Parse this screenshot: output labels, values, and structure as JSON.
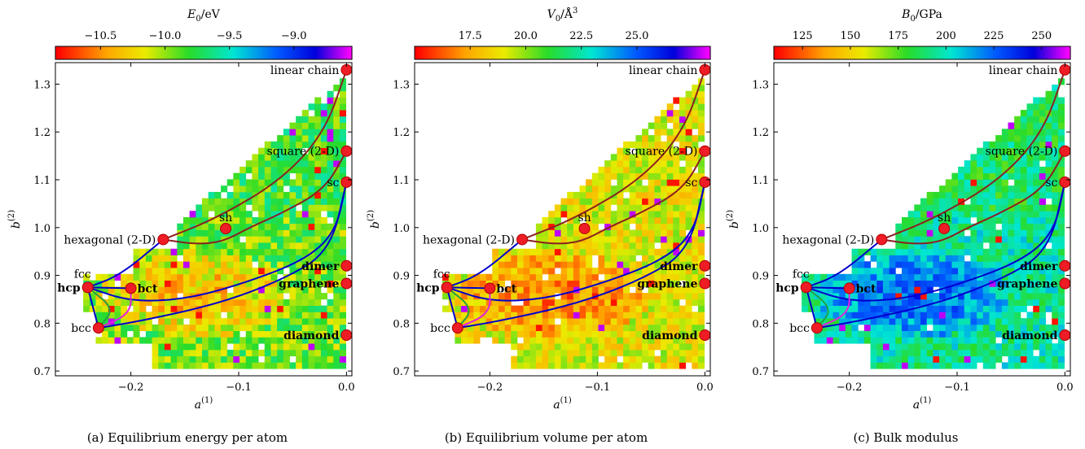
{
  "figure": {
    "y_label": "b^(2)",
    "x_label": "a^(1)"
  },
  "chart_data": [
    {
      "type": "heatmap",
      "caption": "(a) Equilibrium energy per atom",
      "colorbar": {
        "label": "E_0/eV",
        "range": [
          -10.85,
          -8.55
        ],
        "ticks": [
          -10.5,
          -10.0,
          -9.5,
          -9.0
        ],
        "tick_labels": [
          "−10.5",
          "−10.0",
          "−9.5",
          "−9.0"
        ],
        "colormap": "rainbow (red → yellow → green → cyan → blue → magenta)"
      },
      "xlim": [
        -0.27,
        0.005
      ],
      "ylim": [
        0.69,
        1.345
      ],
      "x_ticks": [
        -0.2,
        -0.1,
        0.0
      ],
      "x_tick_labels": [
        "−0.2",
        "−0.1",
        "0.0"
      ],
      "y_ticks": [
        0.7,
        0.8,
        0.9,
        1.0,
        1.1,
        1.2,
        1.3
      ],
      "y_tick_labels": [
        "0.7",
        "0.8",
        "0.9",
        "1.0",
        "1.1",
        "1.2",
        "1.3"
      ],
      "background_level": 0.4,
      "core_level": 0.2,
      "upper_level": 0.45,
      "noise": 0.12
    },
    {
      "type": "heatmap",
      "caption": "(b) Equilibrium volume per atom",
      "colorbar": {
        "label": "V_0/Å^3",
        "range": [
          15.0,
          28.3
        ],
        "ticks": [
          17.5,
          20.0,
          22.5,
          25.0
        ],
        "tick_labels": [
          "17.5",
          "20.0",
          "22.5",
          "25.0"
        ],
        "colormap": "rainbow (red → yellow → green → cyan → blue → magenta)"
      },
      "xlim": [
        -0.27,
        0.005
      ],
      "ylim": [
        0.69,
        1.345
      ],
      "x_ticks": [
        -0.2,
        -0.1,
        0.0
      ],
      "x_tick_labels": [
        "−0.2",
        "−0.1",
        "0.0"
      ],
      "y_ticks": [
        0.7,
        0.8,
        0.9,
        1.0,
        1.1,
        1.2,
        1.3
      ],
      "y_tick_labels": [
        "0.7",
        "0.8",
        "0.9",
        "1.0",
        "1.1",
        "1.2",
        "1.3"
      ],
      "background_level": 0.3,
      "core_level": 0.12,
      "upper_level": 0.3,
      "noise": 0.1
    },
    {
      "type": "heatmap",
      "caption": "(c) Bulk modulus",
      "colorbar": {
        "label": "B_0/GPa",
        "range": [
          110.0,
          265.0
        ],
        "ticks": [
          125,
          150,
          175,
          200,
          225,
          250
        ],
        "tick_labels": [
          "125",
          "150",
          "175",
          "200",
          "225",
          "250"
        ],
        "colormap": "rainbow (red → yellow → green → cyan → blue → magenta)"
      },
      "xlim": [
        -0.27,
        0.005
      ],
      "ylim": [
        0.69,
        1.345
      ],
      "x_ticks": [
        -0.2,
        -0.1,
        0.0
      ],
      "x_tick_labels": [
        "−0.2",
        "−0.1",
        "0.0"
      ],
      "y_ticks": [
        0.7,
        0.8,
        0.9,
        1.0,
        1.1,
        1.2,
        1.3
      ],
      "y_tick_labels": [
        "0.7",
        "0.8",
        "0.9",
        "1.0",
        "1.1",
        "1.2",
        "1.3"
      ],
      "background_level": 0.55,
      "core_level": 0.78,
      "upper_level": 0.5,
      "noise": 0.1
    }
  ],
  "structures": [
    {
      "name": "linear chain",
      "a": 0.0,
      "b": 1.33,
      "bold": false,
      "label_side": "left"
    },
    {
      "name": "square (2-D)",
      "a": 0.0,
      "b": 1.16,
      "bold": false,
      "label_side": "left"
    },
    {
      "name": "sc",
      "a": 0.0,
      "b": 1.095,
      "bold": false,
      "label_side": "left"
    },
    {
      "name": "dimer",
      "a": 0.0,
      "b": 0.92,
      "bold": true,
      "label_side": "left"
    },
    {
      "name": "graphene",
      "a": 0.0,
      "b": 0.883,
      "bold": true,
      "label_side": "left"
    },
    {
      "name": "diamond",
      "a": 0.0,
      "b": 0.775,
      "bold": true,
      "label_side": "left"
    },
    {
      "name": "hexagonal (2-D)",
      "a": -0.17,
      "b": 0.975,
      "bold": false,
      "label_side": "left"
    },
    {
      "name": "sh",
      "a": -0.112,
      "b": 0.998,
      "bold": false,
      "label_side": "above"
    },
    {
      "name": "fcc",
      "a": -0.24,
      "b": 0.875,
      "bold": false,
      "label_side": "above-left"
    },
    {
      "name": "hcp",
      "a": -0.24,
      "b": 0.875,
      "bold": true,
      "label_side": "left"
    },
    {
      "name": "bct",
      "a": -0.2,
      "b": 0.873,
      "bold": true,
      "label_side": "right"
    },
    {
      "name": "bcc",
      "a": -0.23,
      "b": 0.79,
      "bold": false,
      "label_side": "left"
    }
  ],
  "paths": [
    {
      "name": "hexagonal-linear",
      "color": "#8b2020",
      "points": [
        [
          -0.17,
          0.975
        ],
        [
          -0.12,
          1.02
        ],
        [
          -0.06,
          1.1
        ],
        [
          -0.02,
          1.2
        ],
        [
          0,
          1.33
        ]
      ]
    },
    {
      "name": "hexagonal-square",
      "color": "#8b2020",
      "points": [
        [
          -0.17,
          0.975
        ],
        [
          -0.14,
          0.965
        ],
        [
          -0.115,
          0.97
        ],
        [
          -0.09,
          1.0
        ],
        [
          -0.06,
          1.03
        ],
        [
          -0.02,
          1.08
        ],
        [
          0,
          1.16
        ]
      ]
    },
    {
      "name": "hcp-hexagonal",
      "color": "#0000cc",
      "points": [
        [
          -0.24,
          0.875
        ],
        [
          -0.21,
          0.9
        ],
        [
          -0.17,
          0.975
        ]
      ]
    },
    {
      "name": "hcp-sc",
      "color": "#0000cc",
      "points": [
        [
          -0.24,
          0.875
        ],
        [
          -0.2,
          0.845
        ],
        [
          -0.15,
          0.85
        ],
        [
          -0.1,
          0.88
        ],
        [
          -0.04,
          0.93
        ],
        [
          -0.01,
          0.99
        ],
        [
          0,
          1.095
        ]
      ]
    },
    {
      "name": "bcc-sc",
      "color": "#0000cc",
      "points": [
        [
          -0.23,
          0.79
        ],
        [
          -0.19,
          0.805
        ],
        [
          -0.12,
          0.84
        ],
        [
          -0.06,
          0.89
        ],
        [
          -0.015,
          0.95
        ],
        [
          0,
          1.095
        ]
      ]
    },
    {
      "name": "hcp-bct",
      "color": "#0000cc",
      "points": [
        [
          -0.24,
          0.875
        ],
        [
          -0.2,
          0.873
        ]
      ]
    },
    {
      "name": "hcp-bcc",
      "color": "#0000cc",
      "points": [
        [
          -0.24,
          0.875
        ],
        [
          -0.23,
          0.79
        ]
      ]
    },
    {
      "name": "bct-bcc",
      "color": "#e020e0",
      "points": [
        [
          -0.2,
          0.873
        ],
        [
          -0.2,
          0.82
        ],
        [
          -0.23,
          0.79
        ]
      ]
    },
    {
      "name": "fcc-bcc",
      "color": "#20a040",
      "points": [
        [
          -0.24,
          0.875
        ],
        [
          -0.215,
          0.83
        ],
        [
          -0.23,
          0.79
        ]
      ]
    }
  ]
}
